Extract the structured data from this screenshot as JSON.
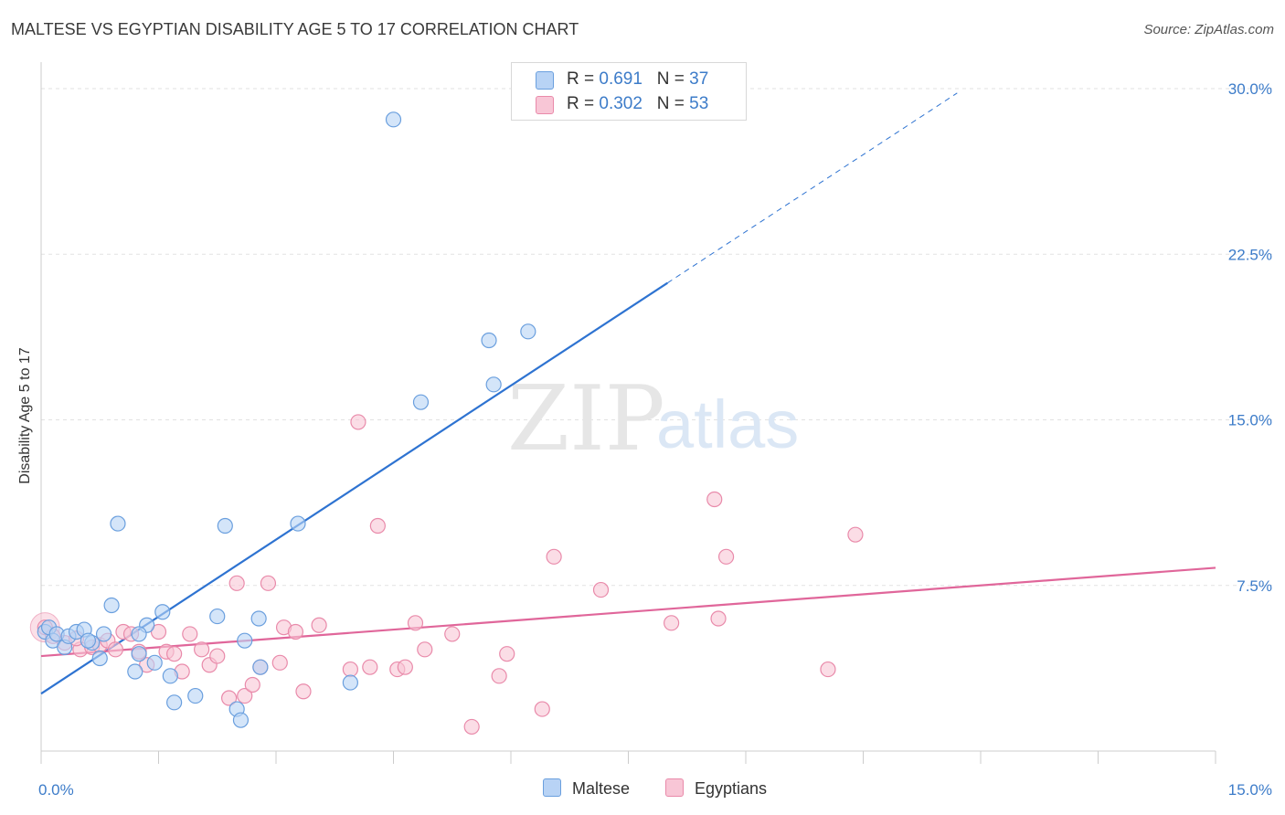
{
  "header": {
    "title": "MALTESE VS EGYPTIAN DISABILITY AGE 5 TO 17 CORRELATION CHART",
    "source": "Source: ZipAtlas.com"
  },
  "watermark": {
    "zip": "ZIP",
    "atlas": "atlas"
  },
  "colors": {
    "maltese_fill": "#b8d3f5",
    "maltese_stroke": "#6a9fde",
    "maltese_line": "#2e73d1",
    "egyptian_fill": "#f8c6d6",
    "egyptian_stroke": "#e98aaa",
    "egyptian_line": "#e0669a",
    "tick_text": "#3d7cc9",
    "grid": "#e2e2e2"
  },
  "legend": {
    "rows": [
      {
        "r_label": "R = ",
        "r_value": "0.691",
        "n_label": "N = ",
        "n_value": "37"
      },
      {
        "r_label": "R = ",
        "r_value": "0.302",
        "n_label": "N = ",
        "n_value": "53"
      }
    ]
  },
  "chart_data": {
    "type": "scatter",
    "title": "MALTESE VS EGYPTIAN DISABILITY AGE 5 TO 17 CORRELATION CHART",
    "xlabel": "",
    "ylabel": "Disability Age 5 to 17",
    "xlim": [
      0,
      15
    ],
    "ylim": [
      0,
      30.5
    ],
    "x_tick_labels": [
      "0.0%",
      "15.0%"
    ],
    "y_ticks": [
      7.5,
      15.0,
      22.5,
      30.0
    ],
    "y_tick_labels": [
      "7.5%",
      "15.0%",
      "22.5%",
      "30.0%"
    ],
    "grid": true,
    "legend_position": "bottom",
    "series": [
      {
        "name": "Maltese",
        "stats": {
          "R": 0.691,
          "N": 37
        },
        "trend": {
          "x0": 0,
          "y0": 2.6,
          "x1": 8.0,
          "y1": 21.2,
          "dash_to_x": 11.7,
          "dash_to_y": 29.8
        },
        "points": [
          [
            0.05,
            5.4
          ],
          [
            0.1,
            5.6
          ],
          [
            0.15,
            5.0
          ],
          [
            0.2,
            5.3
          ],
          [
            0.3,
            4.7
          ],
          [
            0.35,
            5.2
          ],
          [
            0.45,
            5.4
          ],
          [
            0.55,
            5.5
          ],
          [
            0.65,
            4.9
          ],
          [
            0.75,
            4.2
          ],
          [
            0.8,
            5.3
          ],
          [
            0.9,
            6.6
          ],
          [
            0.98,
            10.3
          ],
          [
            1.2,
            3.6
          ],
          [
            1.25,
            4.4
          ],
          [
            1.35,
            5.7
          ],
          [
            1.45,
            4.0
          ],
          [
            1.55,
            6.3
          ],
          [
            1.65,
            3.4
          ],
          [
            1.7,
            2.2
          ],
          [
            1.97,
            2.5
          ],
          [
            2.25,
            6.1
          ],
          [
            2.35,
            10.2
          ],
          [
            2.5,
            1.9
          ],
          [
            2.55,
            1.4
          ],
          [
            2.6,
            5.0
          ],
          [
            2.78,
            6.0
          ],
          [
            2.8,
            3.8
          ],
          [
            3.28,
            10.3
          ],
          [
            3.95,
            3.1
          ],
          [
            4.5,
            28.6
          ],
          [
            4.85,
            15.8
          ],
          [
            5.72,
            18.6
          ],
          [
            5.78,
            16.6
          ],
          [
            6.22,
            19.0
          ],
          [
            1.25,
            5.3
          ],
          [
            0.6,
            5.0
          ]
        ]
      },
      {
        "name": "Egyptians",
        "stats": {
          "R": 0.302,
          "N": 53
        },
        "trend": {
          "x0": 0,
          "y0": 4.3,
          "x1": 15,
          "y1": 8.3
        },
        "points": [
          [
            0.05,
            5.6
          ],
          [
            0.15,
            5.2
          ],
          [
            0.3,
            4.9
          ],
          [
            0.5,
            4.6
          ],
          [
            0.65,
            4.7
          ],
          [
            0.75,
            4.8
          ],
          [
            0.85,
            5.0
          ],
          [
            0.95,
            4.6
          ],
          [
            1.05,
            5.4
          ],
          [
            1.15,
            5.3
          ],
          [
            1.25,
            4.5
          ],
          [
            1.35,
            3.9
          ],
          [
            1.5,
            5.4
          ],
          [
            1.6,
            4.5
          ],
          [
            1.7,
            4.4
          ],
          [
            1.8,
            3.6
          ],
          [
            1.9,
            5.3
          ],
          [
            2.05,
            4.6
          ],
          [
            2.15,
            3.9
          ],
          [
            2.25,
            4.3
          ],
          [
            2.4,
            2.4
          ],
          [
            2.5,
            7.6
          ],
          [
            2.6,
            2.5
          ],
          [
            2.7,
            3.0
          ],
          [
            2.8,
            3.8
          ],
          [
            2.9,
            7.6
          ],
          [
            3.05,
            4.0
          ],
          [
            3.1,
            5.6
          ],
          [
            3.25,
            5.4
          ],
          [
            3.35,
            2.7
          ],
          [
            3.55,
            5.7
          ],
          [
            3.95,
            3.7
          ],
          [
            4.05,
            14.9
          ],
          [
            4.2,
            3.8
          ],
          [
            4.3,
            10.2
          ],
          [
            4.55,
            3.7
          ],
          [
            4.65,
            3.8
          ],
          [
            4.78,
            5.8
          ],
          [
            4.9,
            4.6
          ],
          [
            5.25,
            5.3
          ],
          [
            5.5,
            1.1
          ],
          [
            5.85,
            3.4
          ],
          [
            5.95,
            4.4
          ],
          [
            6.4,
            1.9
          ],
          [
            6.55,
            8.8
          ],
          [
            7.15,
            7.3
          ],
          [
            8.05,
            5.8
          ],
          [
            8.6,
            11.4
          ],
          [
            8.65,
            6.0
          ],
          [
            8.75,
            8.8
          ],
          [
            10.05,
            3.7
          ],
          [
            10.4,
            9.8
          ],
          [
            0.45,
            5.1
          ]
        ]
      }
    ]
  },
  "bottom_legend": {
    "maltese": "Maltese",
    "egyptians": "Egyptians"
  }
}
